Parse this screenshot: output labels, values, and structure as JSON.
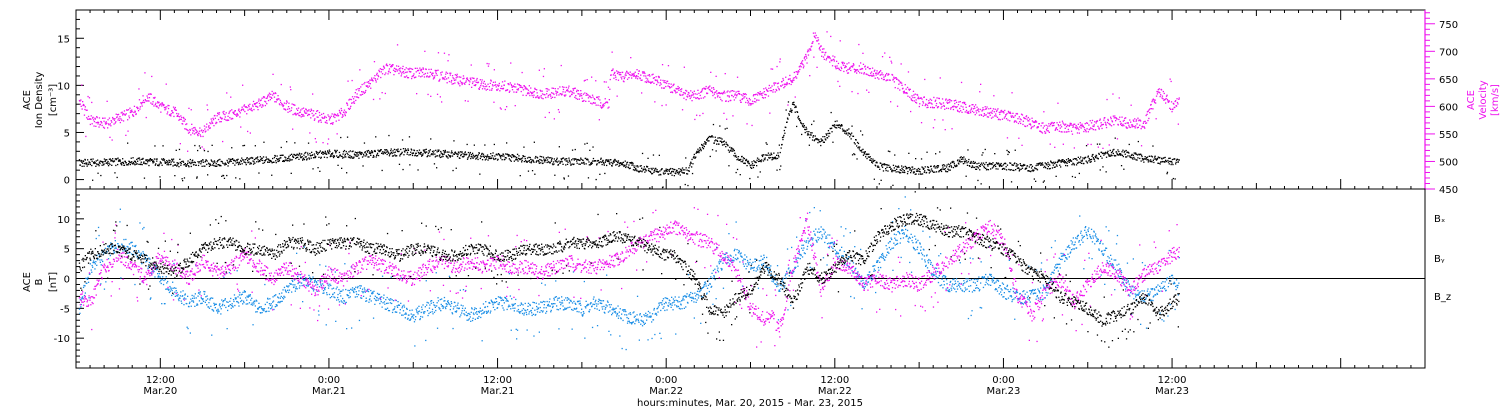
{
  "colors": {
    "black": "#000000",
    "magenta": "#ee11ee",
    "blue": "#1a8ee6",
    "white": "#ffffff"
  },
  "x_axis": {
    "title": "hours:minutes, Mar. 20, 2015 - Mar. 23, 2015",
    "range_hours": [
      6,
      102
    ],
    "ticks": [
      {
        "h": 12,
        "time": "12:00",
        "date": "Mar.20"
      },
      {
        "h": 24,
        "time": "0:00",
        "date": "Mar.21"
      },
      {
        "h": 36,
        "time": "12:00",
        "date": "Mar.21"
      },
      {
        "h": 48,
        "time": "0:00",
        "date": "Mar.22"
      },
      {
        "h": 60,
        "time": "12:00",
        "date": "Mar.22"
      },
      {
        "h": 72,
        "time": "0:00",
        "date": "Mar.23"
      },
      {
        "h": 84,
        "time": "12:00",
        "date": "Mar.23"
      }
    ]
  },
  "chart_data": [
    {
      "type": "scatter",
      "panel": "top",
      "ylabel": [
        "ACE",
        "Ion Density",
        "[cm⁻³]"
      ],
      "y2label": [
        "ACE",
        "Velocity",
        "[km/s]"
      ],
      "xlim": [
        6,
        102
      ],
      "ylim": [
        -1,
        18
      ],
      "y2lim": [
        450,
        775
      ],
      "yticks": [
        0,
        5,
        10,
        15
      ],
      "y2ticks": [
        450,
        500,
        550,
        600,
        650,
        700,
        750
      ],
      "grid": false,
      "series": [
        {
          "axis": "left",
          "color": "#000000",
          "x": [
            6.2,
            8,
            10,
            12,
            14,
            16,
            18,
            20,
            22,
            24,
            26,
            28,
            30,
            32,
            34,
            36,
            38,
            40,
            42,
            44,
            45.5,
            46,
            48,
            49.5,
            50,
            51,
            52,
            53,
            54,
            55,
            56,
            56.5,
            57,
            58,
            59,
            60,
            61,
            62,
            63,
            64,
            66,
            68,
            69,
            70,
            72,
            74,
            76,
            78,
            80,
            82,
            84.5
          ],
          "y": [
            1.8,
            1.9,
            2.0,
            1.9,
            1.8,
            1.8,
            2.0,
            2.2,
            2.5,
            2.8,
            2.7,
            2.9,
            3.0,
            2.8,
            2.6,
            2.5,
            2.3,
            2.0,
            2.0,
            1.9,
            1.6,
            1.2,
            0.8,
            1.0,
            2.5,
            4.5,
            4.0,
            2.5,
            1.5,
            2.5,
            2.5,
            6.0,
            8.0,
            5.0,
            4.0,
            6.0,
            5.0,
            3.0,
            1.5,
            1.2,
            1.0,
            1.3,
            2.2,
            1.5,
            1.5,
            1.3,
            1.8,
            2.2,
            3.0,
            2.3,
            1.9
          ]
        },
        {
          "axis": "right",
          "color": "#ee11ee",
          "x": [
            6.2,
            7,
            8,
            9,
            10,
            11,
            12,
            13,
            14,
            15,
            16,
            17,
            18,
            19,
            20,
            21,
            22,
            23,
            24,
            25,
            26,
            27,
            28,
            29,
            30,
            31,
            32,
            33,
            34,
            35,
            36,
            37,
            38,
            39,
            40,
            41,
            42,
            43,
            43.9,
            44,
            45,
            46,
            47,
            48,
            49,
            50,
            51,
            52,
            53,
            54,
            55,
            56,
            57,
            58,
            58.5,
            59,
            60,
            61,
            62,
            63,
            64,
            65,
            66,
            67,
            68,
            69,
            70,
            71,
            72,
            73,
            74,
            75,
            76,
            77,
            78,
            79,
            80,
            81,
            82,
            82.5,
            83,
            84,
            84.5
          ],
          "y": [
            610,
            575,
            570,
            580,
            590,
            620,
            600,
            590,
            560,
            555,
            580,
            585,
            595,
            605,
            620,
            600,
            590,
            585,
            575,
            590,
            625,
            645,
            670,
            665,
            660,
            665,
            655,
            650,
            645,
            640,
            640,
            635,
            630,
            625,
            625,
            630,
            620,
            610,
            605,
            660,
            655,
            660,
            650,
            640,
            625,
            620,
            630,
            620,
            620,
            610,
            625,
            640,
            650,
            690,
            735,
            700,
            680,
            670,
            670,
            660,
            650,
            630,
            610,
            608,
            605,
            600,
            595,
            590,
            585,
            580,
            570,
            560,
            565,
            560,
            565,
            570,
            575,
            570,
            570,
            600,
            630,
            600,
            610
          ]
        }
      ]
    },
    {
      "type": "scatter",
      "panel": "bottom",
      "ylabel": [
        "ACE",
        "B",
        "[nT]"
      ],
      "xlim": [
        6,
        102
      ],
      "ylim": [
        -15,
        15
      ],
      "yticks": [
        -10,
        -5,
        0,
        5,
        10
      ],
      "grid": false,
      "zero_line": true,
      "legend_position": "right",
      "series": [
        {
          "name": "Bₓ",
          "color": "#000000",
          "x": [
            6.2,
            7,
            8,
            9,
            10,
            11,
            12,
            13,
            14,
            15,
            16,
            17,
            18,
            19,
            20,
            21,
            22,
            23,
            24,
            25,
            26,
            27,
            28,
            29,
            30,
            31,
            32,
            33,
            34,
            35,
            36,
            37,
            38,
            39,
            40,
            41,
            42,
            43,
            44,
            45,
            46,
            47,
            48,
            48.5,
            49,
            50,
            51,
            52,
            53,
            54,
            55,
            56,
            57,
            58,
            59,
            60,
            61,
            62,
            63,
            64,
            65,
            66,
            67,
            68,
            69,
            70,
            71,
            72,
            73,
            74,
            75,
            76,
            77,
            78,
            79,
            80,
            81,
            82,
            83,
            84,
            84.5
          ],
          "y": [
            2,
            4,
            5,
            5,
            4,
            3,
            2,
            1,
            3,
            5,
            6,
            6,
            5,
            5,
            4,
            6,
            6,
            5,
            6,
            6,
            6,
            5,
            5,
            4,
            5,
            5,
            4,
            4,
            5,
            5,
            4,
            4,
            5,
            5,
            5,
            6,
            6,
            6,
            7,
            7,
            6,
            5,
            4,
            4,
            3,
            0,
            -5,
            -6,
            -3,
            -2,
            2,
            0,
            -4,
            2,
            0,
            2,
            4,
            3,
            7,
            9,
            10,
            10,
            9,
            8,
            8,
            7,
            6,
            5,
            3,
            1,
            0,
            -3,
            -4,
            -5,
            -7,
            -6,
            -5,
            -3,
            -6,
            -4,
            -3
          ]
        },
        {
          "name": "Bᵧ",
          "color": "#1a8ee6",
          "x": [
            6.2,
            7,
            8,
            9,
            10,
            11,
            12,
            13,
            14,
            15,
            16,
            17,
            18,
            19,
            20,
            21,
            22,
            23,
            24,
            25,
            26,
            27,
            28,
            29,
            30,
            31,
            32,
            33,
            34,
            35,
            36,
            37,
            38,
            39,
            40,
            41,
            42,
            43,
            44,
            45,
            46,
            47,
            48,
            49,
            50,
            51,
            52,
            53,
            54,
            55,
            56,
            57,
            58,
            59,
            60,
            61,
            62,
            63,
            64,
            65,
            66,
            67,
            68,
            69,
            70,
            71,
            72,
            73,
            74,
            75,
            76,
            77,
            78,
            79,
            80,
            81,
            82,
            83,
            84,
            84.5
          ],
          "y": [
            -5,
            2,
            4,
            6,
            5,
            3,
            0,
            -2,
            -4,
            -3,
            -5,
            -4,
            -3,
            -5,
            -4,
            -2,
            0,
            -1,
            -2,
            -3,
            -2,
            -3,
            -4,
            -5,
            -6,
            -5,
            -4,
            -5,
            -6,
            -5,
            -4,
            -4,
            -5,
            -5,
            -4,
            -4,
            -5,
            -4,
            -5,
            -6,
            -7,
            -6,
            -4,
            -4,
            -3,
            -1,
            3,
            4,
            2,
            3,
            -2,
            2,
            6,
            8,
            5,
            3,
            -1,
            2,
            6,
            8,
            5,
            1,
            -1,
            -1,
            -1,
            0,
            -2,
            -3,
            -3,
            -2,
            3,
            6,
            8,
            5,
            2,
            -2,
            -3,
            -2,
            0,
            -2
          ]
        },
        {
          "name": "B_z",
          "color": "#ee11ee",
          "x": [
            6.2,
            7,
            8,
            9,
            10,
            11,
            12,
            13,
            14,
            15,
            16,
            17,
            18,
            19,
            20,
            21,
            22,
            23,
            24,
            25,
            26,
            27,
            28,
            29,
            30,
            31,
            32,
            33,
            34,
            35,
            36,
            37,
            38,
            39,
            40,
            41,
            42,
            43,
            44,
            45,
            46,
            47,
            48,
            48.5,
            49,
            50,
            51,
            52,
            53,
            54,
            55,
            55.5,
            56,
            57,
            58,
            59,
            60,
            61,
            62,
            63,
            64,
            65,
            66,
            67,
            68,
            69,
            70,
            71,
            72,
            73,
            74,
            75,
            76,
            77,
            78,
            79,
            80,
            81,
            82,
            83,
            84,
            84.5
          ],
          "y": [
            -3,
            -4,
            2,
            4,
            2,
            0,
            4,
            2,
            0,
            3,
            1,
            2,
            4,
            2,
            0,
            2,
            0,
            -2,
            1,
            0,
            2,
            3,
            2,
            1,
            0,
            2,
            3,
            2,
            3,
            2,
            3,
            2,
            2,
            1,
            2,
            3,
            2,
            2,
            3,
            4,
            6,
            7,
            8,
            9,
            8,
            7,
            6,
            4,
            1,
            -5,
            -7,
            -6,
            -9,
            2,
            10,
            -2,
            3,
            2,
            -1,
            0,
            -1,
            0,
            -1,
            1,
            3,
            5,
            7,
            9,
            6,
            -3,
            -6,
            -2,
            0,
            -4,
            -1,
            2,
            1,
            -2,
            1,
            2,
            4,
            5
          ]
        }
      ]
    }
  ]
}
